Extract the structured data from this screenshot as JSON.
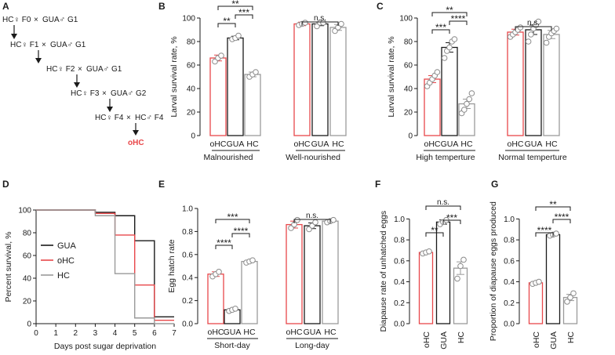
{
  "colors": {
    "oHC": "#e8474a",
    "GUA": "#1a1a1a",
    "HC": "#9a9a9a"
  },
  "panels": {
    "A": "A",
    "B": "B",
    "C": "C",
    "D": "D",
    "E": "E",
    "F": "F",
    "G": "G"
  },
  "scheme": {
    "rows": [
      {
        "female": "HC♀ F0",
        "times": "×",
        "male": "GUA♂ G1"
      },
      {
        "female": "HC♀ F1",
        "times": "×",
        "male": "GUA♂ G1"
      },
      {
        "female": "HC♀ F2",
        "times": "×",
        "male": "GUA♂ G1"
      },
      {
        "female": "HC♀ F3",
        "times": "×",
        "male": "GUA♂ G2"
      },
      {
        "female": "HC♀ F4",
        "times": "×",
        "male": "HC♂ F4"
      }
    ],
    "result": "oHC"
  },
  "chart_data": [
    {
      "panel": "B",
      "type": "bar",
      "ylabel": "Larval survival rate, %",
      "ylim": [
        0,
        100
      ],
      "yticks": [
        0,
        20,
        40,
        60,
        80,
        100
      ],
      "groups": [
        {
          "label": "Malnourished",
          "bars": [
            {
              "cat": "oHC",
              "series": "oHC",
              "mean": 66,
              "err": 2.5,
              "points": [
                63,
                66,
                68
              ]
            },
            {
              "cat": "GUA",
              "series": "GUA",
              "mean": 83,
              "err": 1.5,
              "points": [
                82,
                83,
                85
              ]
            },
            {
              "cat": "HC",
              "series": "HC",
              "mean": 52,
              "err": 2,
              "points": [
                50,
                52,
                54
              ]
            }
          ]
        },
        {
          "label": "Well-nourished",
          "bars": [
            {
              "cat": "oHC",
              "series": "oHC",
              "mean": 95,
              "err": 1.5,
              "points": [
                94,
                95,
                96
              ]
            },
            {
              "cat": "GUA",
              "series": "GUA",
              "mean": 95,
              "err": 1.5,
              "points": [
                93,
                96,
                96
              ]
            },
            {
              "cat": "HC",
              "series": "HC",
              "mean": 92,
              "err": 2.5,
              "points": [
                89,
                92,
                95
              ]
            }
          ]
        }
      ],
      "sig": [
        {
          "from": 0,
          "to": 1,
          "label": "**"
        },
        {
          "from": 1,
          "to": 2,
          "label": "***"
        },
        {
          "from": 0,
          "to": 2,
          "label": "**"
        },
        {
          "from": 3,
          "to": 5,
          "label": "n.s."
        }
      ]
    },
    {
      "panel": "C",
      "type": "bar",
      "ylabel": "Larval survival rate, %",
      "ylim": [
        0,
        100
      ],
      "yticks": [
        0,
        20,
        40,
        60,
        80,
        100
      ],
      "groups": [
        {
          "label": "High temperture",
          "bars": [
            {
              "cat": "oHC",
              "series": "oHC",
              "mean": 48,
              "err": 3,
              "points": [
                42,
                45,
                48,
                51,
                54
              ]
            },
            {
              "cat": "GUA",
              "series": "GUA",
              "mean": 75,
              "err": 4,
              "points": [
                66,
                72,
                75,
                80,
                82
              ]
            },
            {
              "cat": "HC",
              "series": "HC",
              "mean": 27,
              "err": 4,
              "points": [
                19,
                22,
                27,
                31,
                36
              ]
            }
          ]
        },
        {
          "label": "Normal temperture",
          "bars": [
            {
              "cat": "oHC",
              "series": "oHC",
              "mean": 88,
              "err": 2.5,
              "points": [
                84,
                86,
                88,
                90,
                92
              ]
            },
            {
              "cat": "GUA",
              "series": "GUA",
              "mean": 90,
              "err": 4,
              "points": [
                80,
                86,
                91,
                94,
                97
              ]
            },
            {
              "cat": "HC",
              "series": "HC",
              "mean": 86,
              "err": 3.5,
              "points": [
                79,
                84,
                87,
                89,
                91
              ]
            }
          ]
        }
      ],
      "sig": [
        {
          "from": 0,
          "to": 1,
          "label": "***"
        },
        {
          "from": 1,
          "to": 2,
          "label": "****"
        },
        {
          "from": 0,
          "to": 2,
          "label": "**"
        },
        {
          "from": 3,
          "to": 5,
          "label": "n.s."
        }
      ]
    },
    {
      "panel": "D",
      "type": "line",
      "xlabel": "Days post sugar deprivation",
      "ylabel": "Percent survival, %",
      "xlim": [
        0,
        7
      ],
      "ylim": [
        0,
        100
      ],
      "xticks": [
        0,
        1,
        2,
        3,
        4,
        5,
        6,
        7
      ],
      "yticks": [
        0,
        20,
        40,
        60,
        80,
        100
      ],
      "legend": "center-left",
      "series": [
        {
          "name": "GUA",
          "steps": [
            [
              0,
              100
            ],
            [
              3,
              98
            ],
            [
              4,
              95
            ],
            [
              5,
              73
            ],
            [
              6,
              6
            ],
            [
              7,
              6
            ]
          ]
        },
        {
          "name": "oHC",
          "steps": [
            [
              0,
              100
            ],
            [
              3,
              97
            ],
            [
              4,
              78
            ],
            [
              5,
              34
            ],
            [
              6,
              3
            ],
            [
              7,
              3
            ]
          ]
        },
        {
          "name": "HC",
          "steps": [
            [
              0,
              100
            ],
            [
              3,
              95
            ],
            [
              4,
              44
            ],
            [
              5,
              5
            ],
            [
              6,
              0
            ],
            [
              7,
              0
            ]
          ]
        }
      ]
    },
    {
      "panel": "E",
      "type": "bar",
      "ylabel": "Egg hatch rate",
      "ylim": [
        0,
        1.0
      ],
      "yticks": [
        "0.0",
        "0.2",
        "0.4",
        "0.6",
        "0.8",
        "1.0"
      ],
      "groups": [
        {
          "label": "Short-day",
          "bars": [
            {
              "cat": "oHC",
              "series": "oHC",
              "mean": 0.43,
              "err": 0.02,
              "points": [
                0.41,
                0.43,
                0.45
              ]
            },
            {
              "cat": "GUA",
              "series": "GUA",
              "mean": 0.12,
              "err": 0.01,
              "points": [
                0.11,
                0.12,
                0.13
              ]
            },
            {
              "cat": "HC",
              "series": "HC",
              "mean": 0.54,
              "err": 0.008,
              "points": [
                0.53,
                0.54,
                0.55
              ]
            }
          ]
        },
        {
          "label": "Long-day",
          "bars": [
            {
              "cat": "oHC",
              "series": "oHC",
              "mean": 0.86,
              "err": 0.03,
              "points": [
                0.83,
                0.86,
                0.9
              ]
            },
            {
              "cat": "GUA",
              "series": "GUA",
              "mean": 0.85,
              "err": 0.025,
              "points": [
                0.82,
                0.85,
                0.88
              ]
            },
            {
              "cat": "HC",
              "series": "HC",
              "mean": 0.89,
              "err": 0.01,
              "points": [
                0.88,
                0.89,
                0.9
              ]
            }
          ]
        }
      ],
      "sig": [
        {
          "from": 0,
          "to": 1,
          "label": "****"
        },
        {
          "from": 1,
          "to": 2,
          "label": "****"
        },
        {
          "from": 0,
          "to": 2,
          "label": "***"
        },
        {
          "from": 3,
          "to": 5,
          "label": "n.s."
        }
      ]
    },
    {
      "panel": "F",
      "type": "bar",
      "ylabel": "Diapause rate of unhatched eggs",
      "ylim": [
        0,
        1.1
      ],
      "yticks": [
        "0.0",
        "0.2",
        "0.4",
        "0.6",
        "0.8",
        "1.0"
      ],
      "rotate_xlabels": true,
      "groups": [
        {
          "label": "",
          "bars": [
            {
              "cat": "oHC",
              "series": "oHC",
              "mean": 0.68,
              "err": 0.01,
              "points": [
                0.67,
                0.68,
                0.69
              ]
            },
            {
              "cat": "GUA",
              "series": "GUA",
              "mean": 0.97,
              "err": 0.02,
              "points": [
                0.95,
                0.97,
                0.99
              ]
            },
            {
              "cat": "HC",
              "series": "HC",
              "mean": 0.53,
              "err": 0.06,
              "points": [
                0.43,
                0.55,
                0.61
              ]
            }
          ]
        }
      ],
      "sig": [
        {
          "from": 0,
          "to": 1,
          "label": "**"
        },
        {
          "from": 1,
          "to": 2,
          "label": "***"
        },
        {
          "from": 0,
          "to": 2,
          "label": "n.s."
        }
      ]
    },
    {
      "panel": "G",
      "type": "bar",
      "ylabel": "Proportion of diapause eggs produced",
      "ylim": [
        0,
        1.1
      ],
      "yticks": [
        "0.0",
        "0.2",
        "0.4",
        "0.6",
        "0.8",
        "1.0"
      ],
      "rotate_xlabels": true,
      "groups": [
        {
          "label": "",
          "bars": [
            {
              "cat": "oHC",
              "series": "oHC",
              "mean": 0.39,
              "err": 0.01,
              "points": [
                0.38,
                0.39,
                0.4
              ]
            },
            {
              "cat": "GUA",
              "series": "GUA",
              "mean": 0.85,
              "err": 0.01,
              "points": [
                0.84,
                0.85,
                0.86
              ]
            },
            {
              "cat": "HC",
              "series": "HC",
              "mean": 0.25,
              "err": 0.03,
              "points": [
                0.21,
                0.25,
                0.29
              ]
            }
          ]
        }
      ],
      "sig": [
        {
          "from": 0,
          "to": 1,
          "label": "****"
        },
        {
          "from": 1,
          "to": 2,
          "label": "****"
        },
        {
          "from": 0,
          "to": 2,
          "label": "**"
        }
      ]
    }
  ]
}
